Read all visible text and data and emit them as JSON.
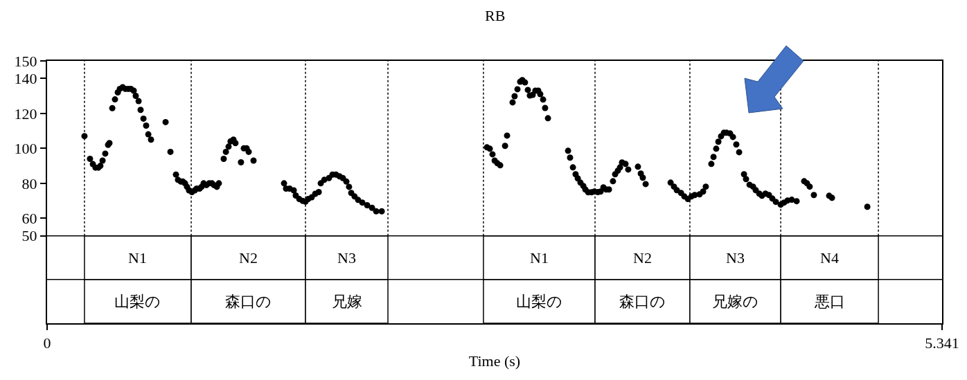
{
  "chart_data": {
    "type": "scatter",
    "title": "RB",
    "xlabel": "Time (s)",
    "xlim": [
      0,
      5.341
    ],
    "xticks": [
      0,
      5.341
    ],
    "ylim": [
      0,
      150
    ],
    "yticks": [
      50,
      60,
      80,
      100,
      120,
      140,
      150
    ],
    "marker": "circle",
    "x": [
      0.223,
      0.256,
      0.273,
      0.289,
      0.306,
      0.318,
      0.331,
      0.347,
      0.364,
      0.372,
      0.389,
      0.405,
      0.422,
      0.434,
      0.451,
      0.467,
      0.484,
      0.5,
      0.517,
      0.529,
      0.546,
      0.558,
      0.575,
      0.591,
      0.604,
      0.62,
      0.707,
      0.736,
      0.769,
      0.781,
      0.798,
      0.81,
      0.823,
      0.835,
      0.847,
      0.864,
      0.881,
      0.893,
      0.91,
      0.922,
      0.934,
      0.951,
      0.967,
      0.984,
      0.996,
      1.013,
      1.025,
      1.054,
      1.067,
      1.083,
      1.095,
      1.112,
      1.124,
      1.157,
      1.174,
      1.191,
      1.203,
      1.232,
      1.414,
      1.426,
      1.447,
      1.472,
      1.484,
      1.505,
      1.525,
      1.542,
      1.558,
      1.579,
      1.6,
      1.621,
      1.633,
      1.654,
      1.682,
      1.703,
      1.724,
      1.745,
      1.765,
      1.786,
      1.802,
      1.815,
      1.835,
      1.856,
      1.881,
      1.91,
      1.939,
      1.964,
      1.997,
      2.625,
      2.642,
      2.658,
      2.671,
      2.687,
      2.704,
      2.733,
      2.745,
      2.778,
      2.79,
      2.807,
      2.823,
      2.836,
      2.852,
      2.869,
      2.881,
      2.898,
      2.914,
      2.931,
      2.943,
      2.96,
      2.972,
      2.989,
      3.109,
      3.121,
      3.138,
      3.154,
      3.167,
      3.183,
      3.2,
      3.212,
      3.229,
      3.249,
      3.266,
      3.287,
      3.303,
      3.32,
      3.336,
      3.353,
      3.377,
      3.39,
      3.406,
      3.419,
      3.431,
      3.452,
      3.468,
      3.526,
      3.543,
      3.555,
      3.572,
      3.721,
      3.741,
      3.758,
      3.783,
      3.803,
      3.824,
      3.845,
      3.865,
      3.894,
      3.915,
      3.931,
      3.964,
      3.977,
      3.993,
      4.006,
      4.022,
      4.039,
      4.055,
      4.076,
      4.093,
      4.113,
      4.13,
      4.159,
      4.171,
      4.192,
      4.213,
      4.229,
      4.25,
      4.266,
      4.287,
      4.308,
      4.328,
      4.349,
      4.378,
      4.398,
      4.419,
      4.444,
      4.473,
      4.518,
      4.535,
      4.551,
      4.576,
      4.667,
      4.684,
      4.895
    ],
    "series": [
      {
        "color": "#000000",
        "values": [
          107,
          94,
          91,
          89,
          89,
          90,
          93,
          97,
          102,
          103,
          123,
          128,
          132,
          134,
          135,
          134,
          134,
          134,
          133,
          130,
          127,
          122,
          117,
          113,
          108,
          105,
          115,
          98,
          85,
          82,
          81,
          81,
          80,
          78,
          76,
          75,
          76,
          77,
          77,
          78,
          80,
          79,
          80,
          80,
          79,
          78,
          80,
          94,
          98,
          101,
          104,
          105,
          103,
          92,
          100,
          100,
          98,
          93,
          80,
          77,
          77,
          76,
          73,
          71,
          70,
          69.5,
          71,
          72,
          74,
          75,
          80,
          82,
          83,
          85,
          85,
          84,
          83,
          81,
          78,
          74.5,
          72.5,
          70.5,
          69,
          67.5,
          66,
          64,
          64,
          100.6,
          99.8,
          96.6,
          93,
          91.5,
          90.3,
          101.4,
          107.3,
          126.3,
          129.8,
          133.8,
          138.1,
          139,
          137.7,
          133.4,
          130.2,
          130.6,
          133,
          133,
          131,
          127.9,
          123.1,
          117.2,
          98.6,
          94.7,
          89.1,
          85.2,
          82.8,
          80.4,
          78.5,
          76.5,
          74.9,
          74.9,
          75.3,
          75,
          75.3,
          77.7,
          76.5,
          76.5,
          81.2,
          85.2,
          87.2,
          89.1,
          91.9,
          91.1,
          87.9,
          89.5,
          85.6,
          83.2,
          79.6,
          80.4,
          78.1,
          76.1,
          74.5,
          72.5,
          71,
          72.5,
          73.3,
          73.7,
          75.3,
          78.1,
          91.1,
          95.1,
          99.8,
          103.8,
          106.9,
          108.9,
          108.9,
          108.5,
          106.5,
          102.2,
          97.8,
          85.2,
          82.4,
          79.2,
          78.1,
          76.1,
          74.1,
          72.9,
          74.1,
          73.3,
          71.3,
          69.4,
          67.8,
          69,
          70.2,
          70.6,
          69.8,
          81.2,
          80,
          78.1,
          73.3,
          72.9,
          71.7,
          66.6
        ]
      }
    ],
    "ref_lines": [
      {
        "axis": "x",
        "value": 0.223,
        "line_style": "dotted"
      },
      {
        "axis": "x",
        "value": 0.86,
        "line_style": "dotted"
      },
      {
        "axis": "x",
        "value": 1.542,
        "line_style": "dotted"
      },
      {
        "axis": "x",
        "value": 2.034,
        "line_style": "dotted"
      },
      {
        "axis": "x",
        "value": 2.604,
        "line_style": "dotted"
      },
      {
        "axis": "x",
        "value": 3.27,
        "line_style": "dotted"
      },
      {
        "axis": "x",
        "value": 3.836,
        "line_style": "dotted"
      },
      {
        "axis": "x",
        "value": 4.378,
        "line_style": "dotted"
      },
      {
        "axis": "x",
        "value": 4.961,
        "line_style": "dotted"
      }
    ],
    "bands": [
      {
        "axis": "x",
        "from": 0.223,
        "to": 0.86,
        "label": "N1"
      },
      {
        "axis": "x",
        "from": 0.86,
        "to": 1.542,
        "label": "N2"
      },
      {
        "axis": "x",
        "from": 1.542,
        "to": 2.034,
        "label": "N3"
      },
      {
        "axis": "x",
        "from": 2.604,
        "to": 3.27,
        "label": "N1"
      },
      {
        "axis": "x",
        "from": 3.27,
        "to": 3.836,
        "label": "N2"
      },
      {
        "axis": "x",
        "from": 3.836,
        "to": 4.378,
        "label": "N3"
      },
      {
        "axis": "x",
        "from": 4.378,
        "to": 4.961,
        "label": "N4"
      },
      {
        "axis": "x",
        "from": 0.223,
        "to": 0.86,
        "label": "山梨の"
      },
      {
        "axis": "x",
        "from": 0.86,
        "to": 1.542,
        "label": "森口の"
      },
      {
        "axis": "x",
        "from": 1.542,
        "to": 2.034,
        "label": "兄嫁"
      },
      {
        "axis": "x",
        "from": 2.604,
        "to": 3.27,
        "label": "山梨の"
      },
      {
        "axis": "x",
        "from": 3.27,
        "to": 3.836,
        "label": "森口の"
      },
      {
        "axis": "x",
        "from": 3.836,
        "to": 4.378,
        "label": "兄嫁の"
      },
      {
        "axis": "x",
        "from": 4.378,
        "to": 4.961,
        "label": "悪口"
      }
    ]
  }
}
